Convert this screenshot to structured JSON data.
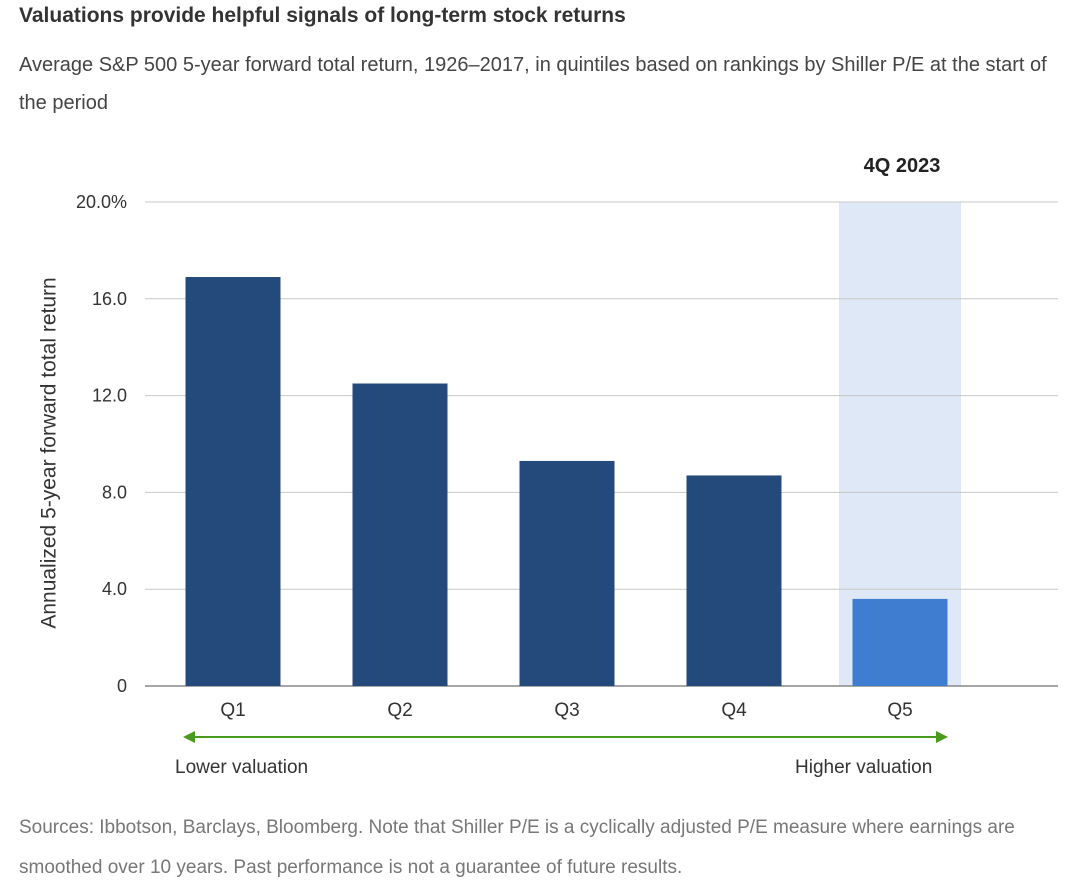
{
  "chart_data": {
    "type": "bar",
    "title": "Valuations provide helpful signals of long-term stock returns",
    "subtitle": "Average S&P 500 5-year forward total return, 1926–2017, in quintiles based on rankings by Shiller P/E at the start of the period",
    "categories": [
      "Q1",
      "Q2",
      "Q3",
      "Q4",
      "Q5"
    ],
    "values": [
      16.9,
      12.5,
      9.3,
      8.7,
      3.6
    ],
    "ylabel": "Annualized 5-year forward total return",
    "ylim": [
      0,
      20
    ],
    "yticks": [
      0,
      4,
      8,
      12,
      16,
      20
    ],
    "ytick_labels": [
      "0",
      "4.0",
      "8.0",
      "12.0",
      "16.0",
      "20.0%"
    ],
    "grid": true,
    "highlight": {
      "category": "Q5",
      "label": "4Q 2023"
    },
    "colors": {
      "bar": "#244a7c",
      "highlight_bar": "#3f7dd1",
      "highlight_band": "#dfe8f6",
      "arrow": "#4a9a1d",
      "grid": "#c8c8c8"
    },
    "annotations": {
      "left": "Lower valuation",
      "right": "Higher valuation"
    }
  },
  "footer": {
    "sources": "Sources: Ibbotson, Barclays, Bloomberg. Note that Shiller P/E is a cyclically adjusted P/E measure where earnings are smoothed over 10 years. Past performance is not a guarantee of future results."
  }
}
